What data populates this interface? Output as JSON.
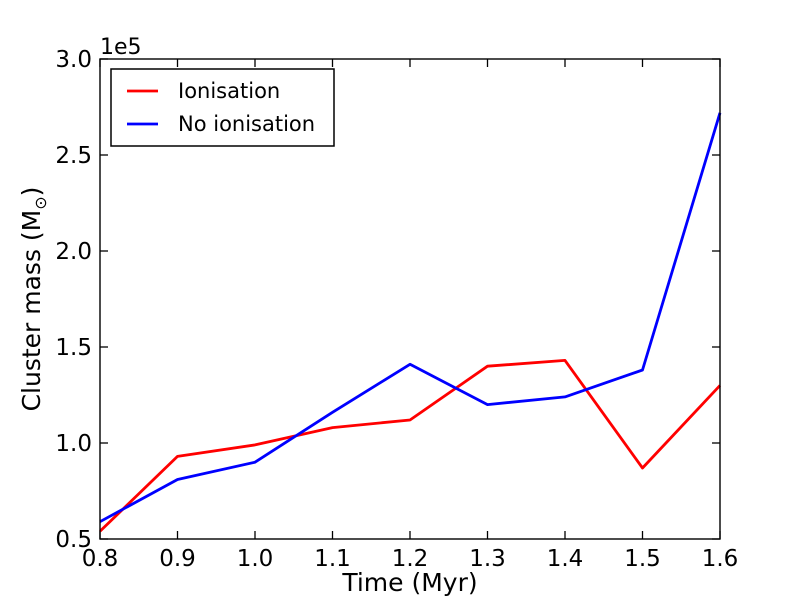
{
  "chart_data": {
    "type": "line",
    "title": "",
    "xlabel": "Time (Myr)",
    "ylabel": "Cluster mass (M⊙)",
    "ylabel_parts": {
      "base": "Cluster mass (M",
      "subscript": "⊙",
      "close": ")"
    },
    "offset_label": "1e5",
    "x": [
      0.8,
      0.9,
      1.0,
      1.1,
      1.2,
      1.3,
      1.4,
      1.5,
      1.6
    ],
    "series": [
      {
        "name": "Ionisation",
        "color": "#ff0000",
        "values": [
          54000,
          93000,
          99000,
          108000,
          112000,
          140000,
          143000,
          87000,
          130000
        ]
      },
      {
        "name": "No ionisation",
        "color": "#0000ff",
        "values": [
          59000,
          81000,
          90000,
          116000,
          141000,
          120000,
          124000,
          138000,
          272000
        ]
      }
    ],
    "xlim": [
      0.8,
      1.6
    ],
    "ylim": [
      50000,
      300000
    ],
    "xtick_values": [
      0.8,
      0.9,
      1.0,
      1.1,
      1.2,
      1.3,
      1.4,
      1.5,
      1.6
    ],
    "xtick_labels": [
      "0.8",
      "0.9",
      "1.0",
      "1.1",
      "1.2",
      "1.3",
      "1.4",
      "1.5",
      "1.6"
    ],
    "ytick_values": [
      50000,
      100000,
      150000,
      200000,
      250000,
      300000
    ],
    "ytick_labels": [
      "0.5",
      "1.0",
      "1.5",
      "2.0",
      "2.5",
      "3.0"
    ],
    "legend": {
      "position": "upper left",
      "entries": [
        {
          "label": "Ionisation",
          "color": "#ff0000"
        },
        {
          "label": "No ionisation",
          "color": "#0000ff"
        }
      ]
    },
    "grid": false,
    "background_color": "#ffffff",
    "axes_color": "#000000",
    "text_color": "#000000"
  }
}
